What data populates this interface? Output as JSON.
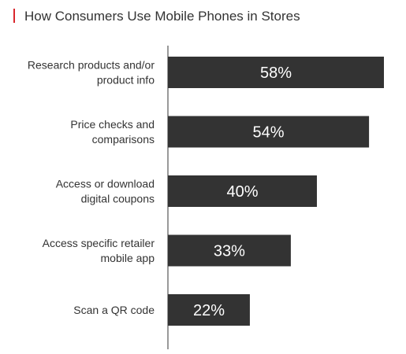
{
  "chart_data": {
    "type": "bar",
    "orientation": "horizontal",
    "title": "How Consumers Use Mobile Phones in Stores",
    "categories": [
      [
        "Research products and/or",
        "product info"
      ],
      [
        "Price checks and",
        "comparisons"
      ],
      [
        "Access or download",
        "digital coupons"
      ],
      [
        "Access specific retailer",
        "mobile app"
      ],
      [
        "Scan a QR code"
      ]
    ],
    "values": [
      58,
      54,
      40,
      33,
      22
    ],
    "value_labels": [
      "58%",
      "54%",
      "40%",
      "33%",
      "22%"
    ],
    "xlim": [
      0,
      58
    ],
    "grid": false,
    "legend": "none",
    "colors": {
      "bar": "#333333",
      "bar_text": "#ffffff",
      "accent": "#d9262c",
      "text": "#333333",
      "axis": "#333333"
    }
  }
}
